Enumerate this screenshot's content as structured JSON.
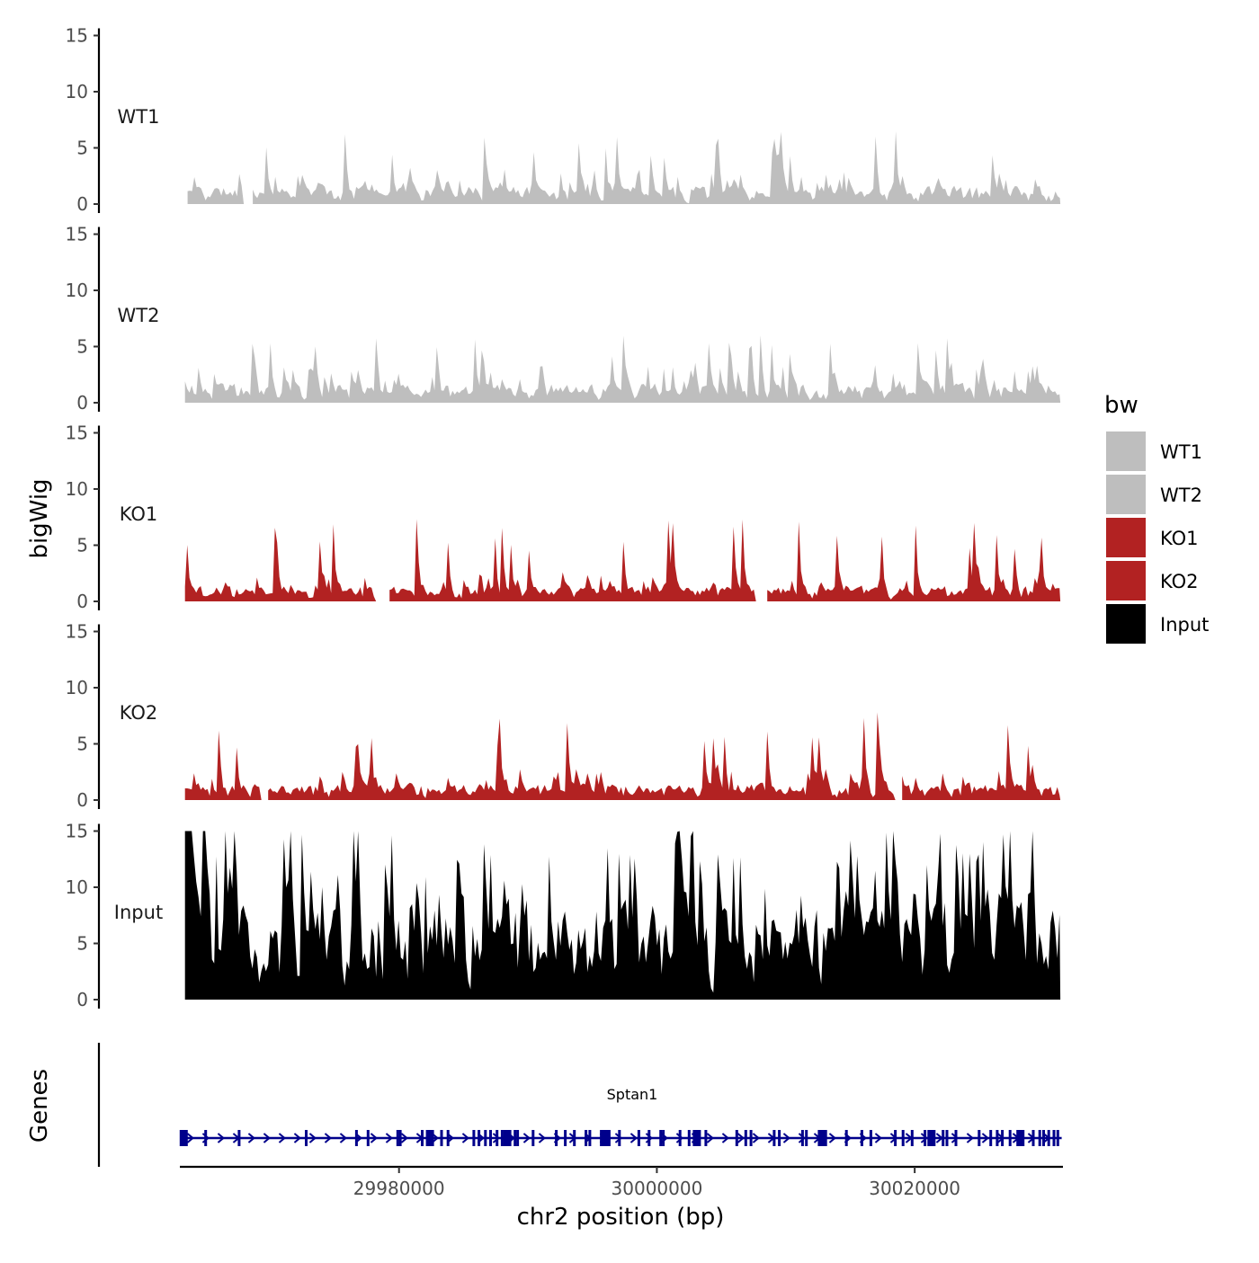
{
  "chart_data": {
    "type": "area",
    "title": "",
    "xlabel": "chr2 position (bp)",
    "ylabel": "bigWig",
    "genes_label": "Genes",
    "xlim": [
      29963000,
      30031500
    ],
    "x_ticks": [
      29980000,
      30000000,
      30020000
    ],
    "x_tick_labels": [
      "29980000",
      "30000000",
      "30020000"
    ],
    "ylim": [
      0,
      15
    ],
    "y_ticks": [
      0,
      5,
      10,
      15
    ],
    "y_tick_labels": [
      "0",
      "5",
      "10",
      "15"
    ],
    "tracks": [
      {
        "name": "WT1",
        "color": "#bebebe",
        "start": 29963600,
        "end": 30031300,
        "typical": 1.2,
        "peak_max": 6.6,
        "seed": 11,
        "gaps": [
          [
            29967800,
            29968500
          ]
        ]
      },
      {
        "name": "WT2",
        "color": "#bebebe",
        "start": 29963400,
        "end": 30031300,
        "typical": 1.3,
        "peak_max": 6.1,
        "seed": 23,
        "gaps": []
      },
      {
        "name": "KO1",
        "color": "#b22222",
        "start": 29963400,
        "end": 30031300,
        "typical": 1.0,
        "peak_max": 7.4,
        "seed": 37,
        "gaps": [
          [
            29978200,
            29979100
          ],
          [
            30007600,
            30008400
          ]
        ]
      },
      {
        "name": "KO2",
        "color": "#b22222",
        "start": 29963400,
        "end": 30031300,
        "typical": 1.1,
        "peak_max": 7.8,
        "seed": 41,
        "gaps": [
          [
            29969200,
            29969800
          ],
          [
            30018400,
            30018900
          ]
        ]
      },
      {
        "name": "Input",
        "color": "#000000",
        "start": 29963400,
        "end": 30031300,
        "typical": 6.5,
        "peak_max": 15.0,
        "seed": 53,
        "gaps": []
      }
    ],
    "legend": {
      "title": "bw",
      "position": "right",
      "items": [
        {
          "label": "WT1",
          "color": "#bebebe"
        },
        {
          "label": "WT2",
          "color": "#bebebe"
        },
        {
          "label": "KO1",
          "color": "#b22222"
        },
        {
          "label": "KO2",
          "color": "#b22222"
        },
        {
          "label": "Input",
          "color": "#000000"
        }
      ]
    },
    "gene": {
      "name": "Sptan1",
      "start": 29963100,
      "end": 30031400,
      "strand": "+",
      "color": "#00008b",
      "exons": [
        29963300,
        29965000,
        29967600,
        29972800,
        29976700,
        29977600,
        29979900,
        29980100,
        29981800,
        29982400,
        29983300,
        29983800,
        29985800,
        29986200,
        29986700,
        29987100,
        29987600,
        29988000,
        29988400,
        29989000,
        29989200,
        29990400,
        29992200,
        29992900,
        29993600,
        29994500,
        29994800,
        29995900,
        29996300,
        29997100,
        29998600,
        29999400,
        30000300,
        30000500,
        30001800,
        30002500,
        30003100,
        30003800,
        30006200,
        30006900,
        30007300,
        30009100,
        30009500,
        30011300,
        30011600,
        30012800,
        30013100,
        30014700,
        30015900,
        30016600,
        30018500,
        30019100,
        30019800,
        30020800,
        30021300,
        30022200,
        30022500,
        30023200,
        30025000,
        30025900,
        30026400,
        30026800,
        30027400,
        30028200,
        30029200,
        30029700,
        30030000,
        30030400,
        30030800,
        30031100
      ],
      "exon_width_bp": 160
    }
  }
}
